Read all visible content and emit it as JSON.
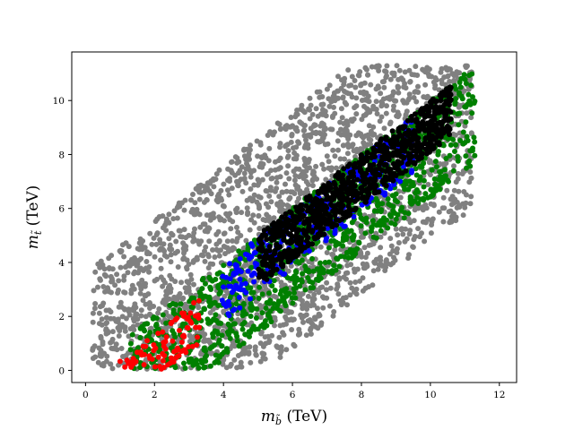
{
  "chart_data": {
    "type": "scatter",
    "title": "",
    "xlabel": "m_b̃ (TeV)",
    "ylabel": "m_t̃ (TeV)",
    "xlabel_parts": {
      "var": "m",
      "sub": "b̃",
      "unit": "(TeV)"
    },
    "ylabel_parts": {
      "var": "m",
      "sub": "t̃",
      "unit": "(TeV)"
    },
    "xlim": [
      -0.4,
      12.5
    ],
    "ylim": [
      -0.45,
      11.8
    ],
    "xticks": [
      0,
      2,
      4,
      6,
      8,
      10,
      12
    ],
    "yticks": [
      0,
      2,
      4,
      6,
      8,
      10
    ],
    "xtick_labels": [
      "0",
      "2",
      "4",
      "6",
      "8",
      "10",
      "12"
    ],
    "ytick_labels": [
      "0",
      "2",
      "4",
      "6",
      "8",
      "10"
    ],
    "grid": false,
    "series": [
      {
        "color": "#808080",
        "region": {
          "x_range": [
            0.2,
            11.2
          ],
          "offset_min": -5.2,
          "offset_max": 3.6,
          "ratio_max": 1.0,
          "seed": 11,
          "count": 2400
        }
      },
      {
        "color": "#008000",
        "region": {
          "x_range": [
            1.3,
            11.3
          ],
          "offset_min": -3.6,
          "offset_max": 0.0,
          "ratio_max": 1.0,
          "seed": 23,
          "count": 1100
        }
      },
      {
        "color": "#0000ff",
        "region": {
          "x_range": [
            3.9,
            9.6
          ],
          "offset_min": -2.2,
          "offset_max": -0.1,
          "ratio_max": 1.0,
          "seed": 37,
          "count": 260
        }
      },
      {
        "color": "#000000",
        "region": {
          "x_range": [
            5.0,
            10.6
          ],
          "offset_min": -1.9,
          "offset_max": 0.0,
          "ratio_max": 1.0,
          "seed": 41,
          "count": 900
        }
      },
      {
        "color": "#ff0000",
        "region": {
          "x_range": [
            0.8,
            3.3
          ],
          "offset_min": -2.3,
          "offset_max": -0.6,
          "ratio_max": 0.7,
          "seed": 53,
          "count": 90
        }
      }
    ]
  }
}
